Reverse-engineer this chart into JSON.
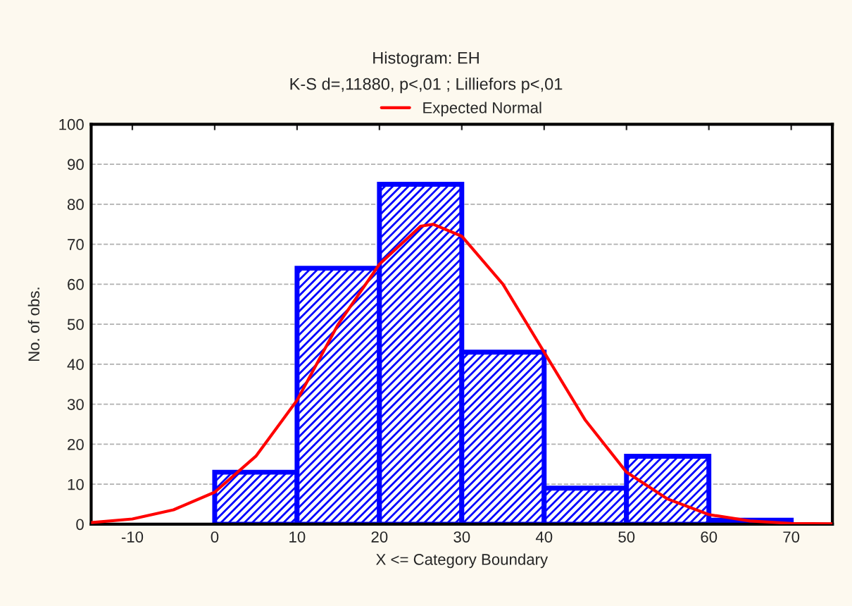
{
  "chart_data": {
    "type": "histogram",
    "title": "Histogram: EH",
    "subtitle": "K-S d=,11880, p<,01 ; Lilliefors p<,01",
    "xlabel": "X <= Category Boundary",
    "ylabel": "No. of obs.",
    "bins": [
      0,
      10,
      20,
      30,
      40,
      50,
      60,
      70
    ],
    "values": [
      13,
      64,
      85,
      43,
      9,
      17,
      1
    ],
    "color": "#0000ff",
    "series": [
      {
        "type": "line",
        "name": "Expected Normal",
        "color": "#ff0000",
        "x": [
          -15,
          -10,
          -5,
          0,
          5,
          10,
          15,
          20,
          25,
          26.5,
          30,
          35,
          40,
          45,
          50,
          55,
          60,
          65,
          70,
          75
        ],
        "values": [
          0.4,
          1.3,
          3.6,
          8,
          17,
          31,
          50,
          65,
          74.5,
          75,
          72,
          60,
          43,
          26,
          13,
          6.3,
          2.4,
          0.8,
          0.2,
          0.1
        ]
      }
    ],
    "xlim": [
      -15,
      75
    ],
    "xticks": [
      -10,
      0,
      10,
      20,
      30,
      40,
      50,
      60,
      70
    ],
    "ylim": [
      0,
      100
    ],
    "yticks": [
      0,
      10,
      20,
      30,
      40,
      50,
      60,
      70,
      80,
      90,
      100
    ],
    "grid": "y",
    "legend": "top"
  }
}
